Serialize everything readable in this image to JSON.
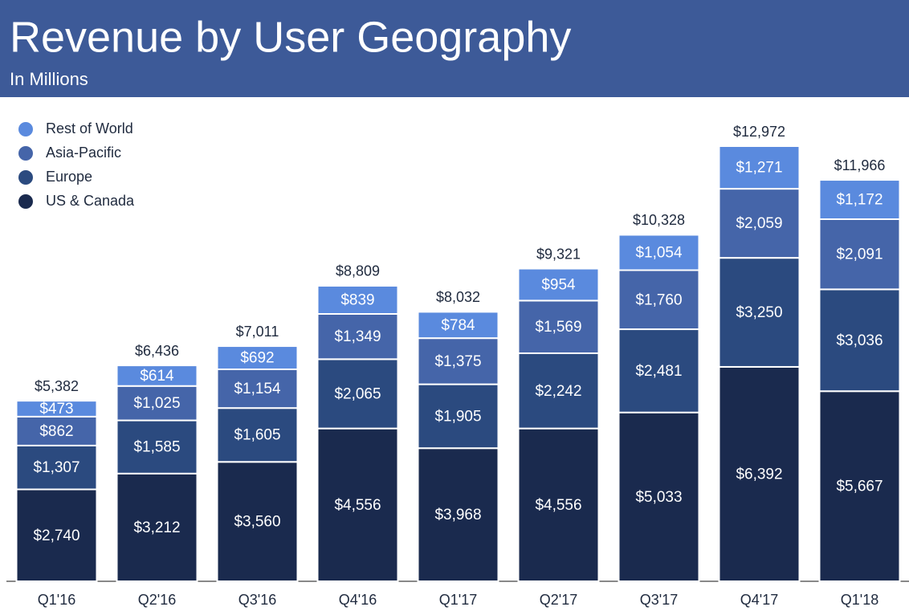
{
  "chart_data": {
    "type": "stacked_bar",
    "title": "Revenue by User Geography",
    "subtitle": "In Millions",
    "categories": [
      "Q1'16",
      "Q2'16",
      "Q3'16",
      "Q4'16",
      "Q1'17",
      "Q2'17",
      "Q3'17",
      "Q4'17",
      "Q1'18"
    ],
    "series": [
      {
        "name": "US & Canada",
        "color": "#1a2a4e",
        "values": [
          2740,
          3212,
          3560,
          4556,
          3968,
          4556,
          5033,
          6392,
          5667
        ],
        "value_labels": [
          "$2,740",
          "$3,212",
          "$3,560",
          "$4,556",
          "$3,968",
          "$4,556",
          "$5,033",
          "$6,392",
          "$5,667"
        ]
      },
      {
        "name": "Europe",
        "color": "#2b4a7f",
        "values": [
          1307,
          1585,
          1605,
          2065,
          1905,
          2242,
          2481,
          3250,
          3036
        ],
        "value_labels": [
          "$1,307",
          "$1,585",
          "$1,605",
          "$2,065",
          "$1,905",
          "$2,242",
          "$2,481",
          "$3,250",
          "$3,036"
        ]
      },
      {
        "name": "Asia-Pacific",
        "color": "#4565a9",
        "values": [
          862,
          1025,
          1154,
          1349,
          1375,
          1569,
          1760,
          2059,
          2091
        ],
        "value_labels": [
          "$862",
          "$1,025",
          "$1,154",
          "$1,349",
          "$1,375",
          "$1,569",
          "$1,760",
          "$2,059",
          "$2,091"
        ]
      },
      {
        "name": "Rest of World",
        "color": "#5a8ade",
        "values": [
          473,
          614,
          692,
          839,
          784,
          954,
          1054,
          1271,
          1172
        ],
        "value_labels": [
          "$473",
          "$614",
          "$692",
          "$839",
          "$784",
          "$954",
          "$1,054",
          "$1,271",
          "$1,172"
        ]
      }
    ],
    "totals": {
      "values": [
        5382,
        6436,
        7011,
        8809,
        8032,
        9321,
        10328,
        12972,
        11966
      ],
      "value_labels": [
        "$5,382",
        "$6,436",
        "$7,011",
        "$8,809",
        "$8,032",
        "$9,321",
        "$10,328",
        "$12,972",
        "$11,966"
      ]
    },
    "legend": "top-left"
  }
}
